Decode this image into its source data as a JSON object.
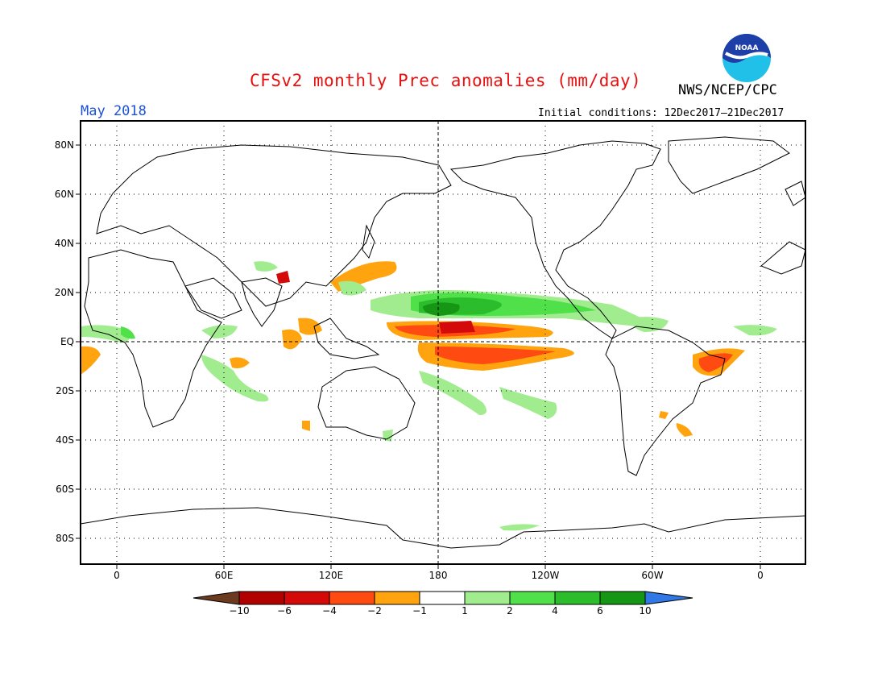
{
  "title": "CFSv2 monthly Prec anomalies (mm/day)",
  "agency": "NWS/NCEP/CPC",
  "logo_text": "NOAA",
  "month": "May 2018",
  "initial_conditions": "Initial conditions: 12Dec2017–21Dec2017",
  "map": {
    "lat_labels": [
      "80N",
      "60N",
      "40N",
      "20N",
      "EQ",
      "20S",
      "40S",
      "60S",
      "80S"
    ],
    "lon_labels": [
      "0",
      "60E",
      "120E",
      "180",
      "120W",
      "60W",
      "0"
    ]
  },
  "colorbar": {
    "labels": [
      "−10",
      "−6",
      "−4",
      "−2",
      "−1",
      "1",
      "2",
      "4",
      "6",
      "10"
    ],
    "colors": {
      "lt_neg10": "#6b3a1f",
      "neg10_neg6": "#b00000",
      "neg6_neg4": "#d40a0a",
      "neg4_neg2": "#ff4a12",
      "neg2_neg1": "#ffa40e",
      "neg1_1": "#ffffff",
      "p1_p2": "#a0ec8e",
      "p2_p4": "#4fe04a",
      "p4_p6": "#2cbd2c",
      "p6_p10": "#159615",
      "gt_10": "#2f78e6"
    }
  }
}
